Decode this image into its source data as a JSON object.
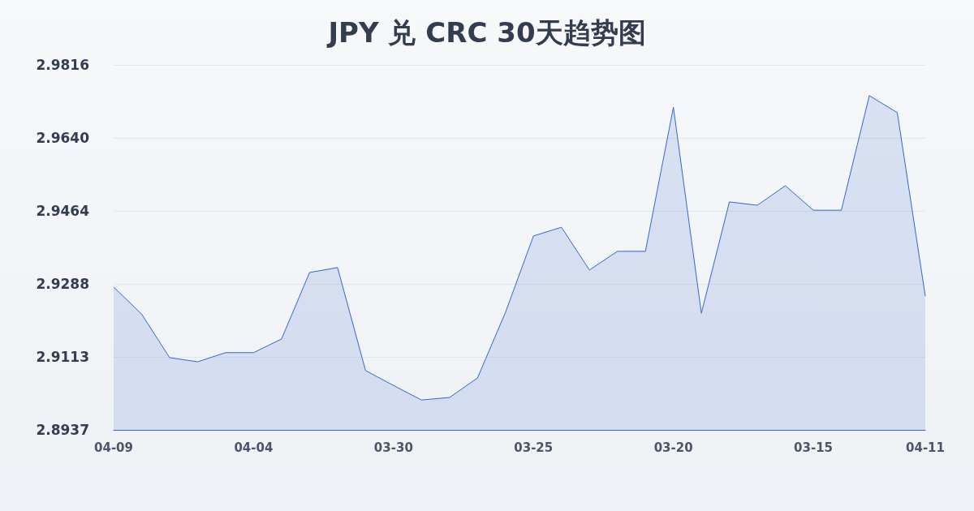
{
  "chart_data": {
    "type": "area",
    "title": "JPY 兑 CRC 30天趋势图",
    "categories": [
      "04-09",
      null,
      null,
      null,
      null,
      "04-04",
      null,
      null,
      null,
      null,
      "03-30",
      null,
      null,
      null,
      null,
      "03-25",
      null,
      null,
      null,
      null,
      "03-20",
      null,
      null,
      null,
      null,
      "03-15",
      null,
      null,
      null,
      "04-11"
    ],
    "series": [
      {
        "color": "#3366cc",
        "values": [
          2.9281,
          2.9216,
          2.9111,
          2.9101,
          2.9123,
          2.9123,
          2.9156,
          2.9316,
          2.9328,
          2.908,
          2.9044,
          2.9009,
          2.9015,
          2.9062,
          2.922,
          2.9404,
          2.9425,
          2.9322,
          2.9367,
          2.9367,
          2.9714,
          2.9218,
          2.9486,
          2.9478,
          2.9525,
          2.9466,
          2.9466,
          2.9742,
          2.9701,
          2.9259
        ]
      }
    ],
    "ylim": [
      2.8937,
      2.9816
    ],
    "yticks": [
      2.8937,
      2.9113,
      2.9288,
      2.9464,
      {
        "value": 2.964,
        "label": "2.9640"
      },
      2.9816
    ],
    "grid": "y",
    "marker": "none",
    "line_style": "solid"
  }
}
